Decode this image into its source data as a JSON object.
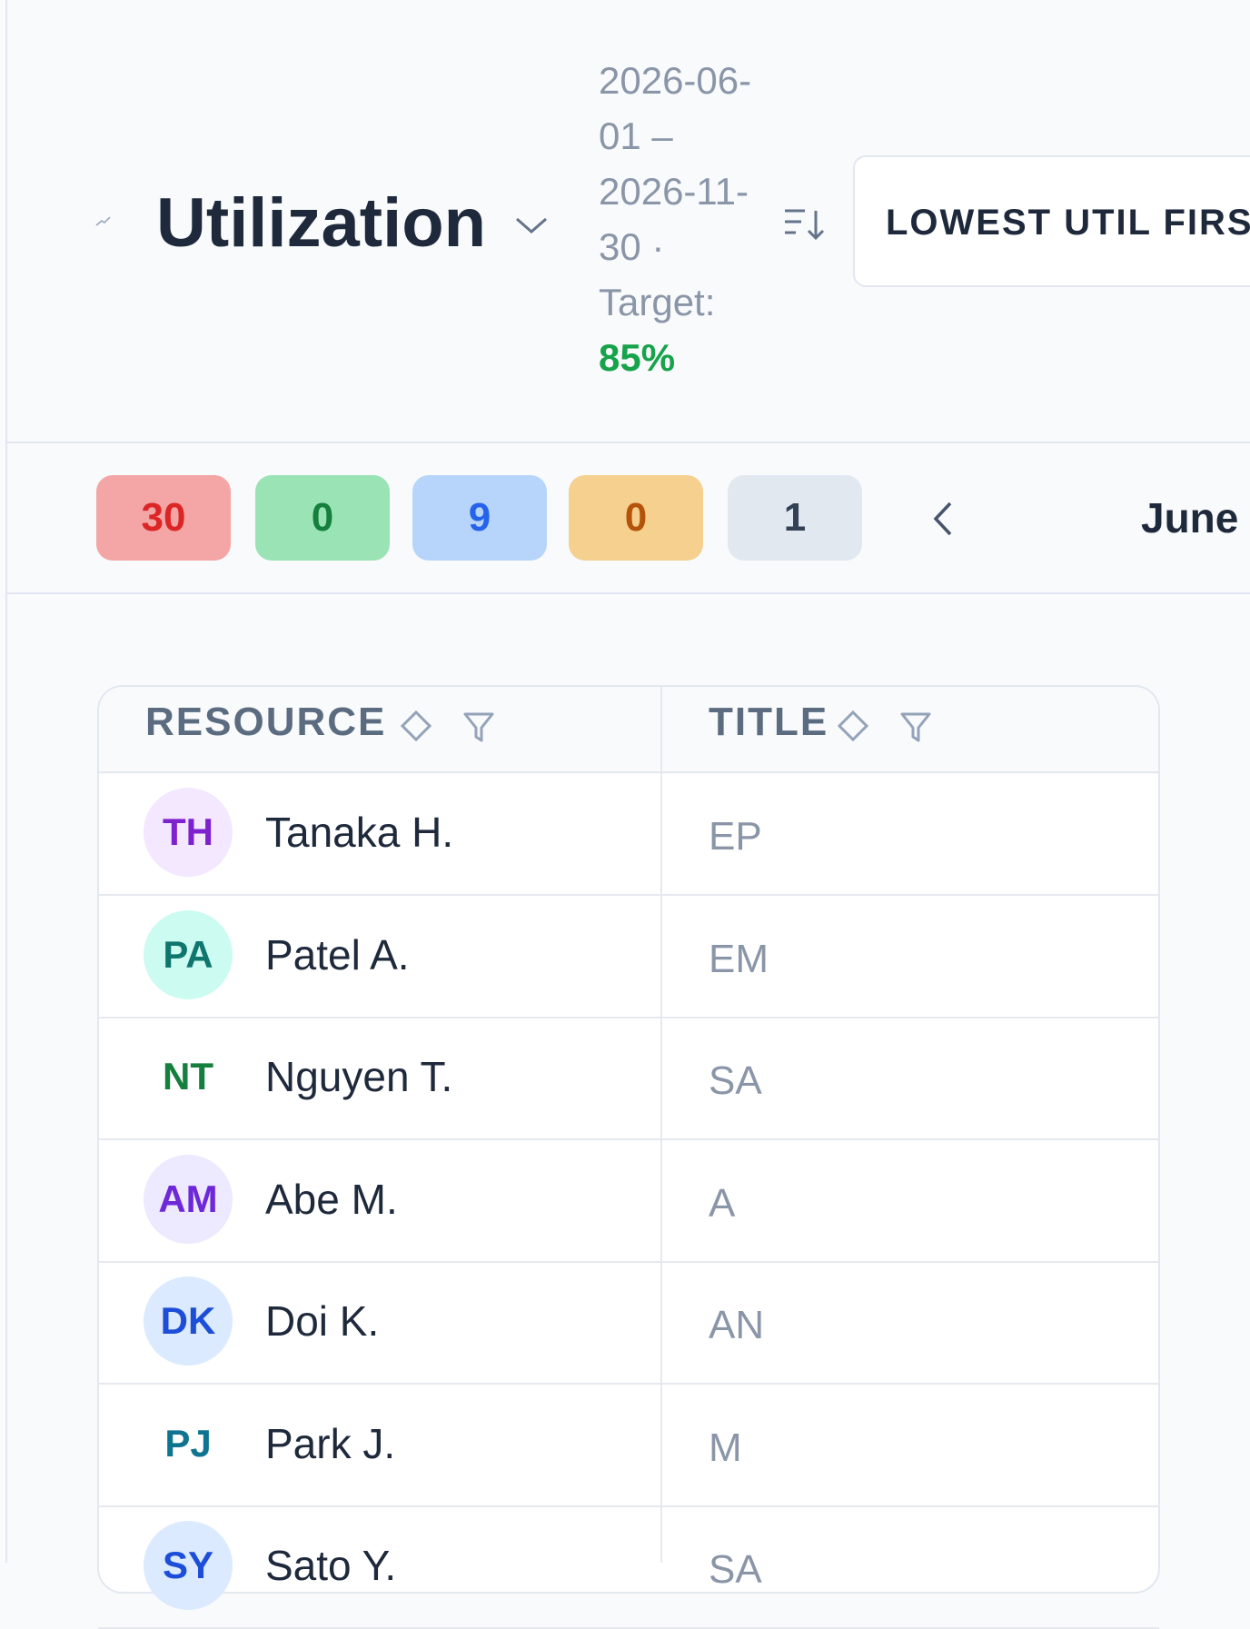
{
  "header": {
    "title": "Utilization",
    "date_range": "2026-06-01 – 2026-11-30 ·",
    "target_label": "Target:",
    "target_value": "85%",
    "sort_button": "LOWEST UTIL FIRST"
  },
  "badges": [
    30,
    0,
    9,
    0,
    1
  ],
  "month": "June",
  "table": {
    "columns": [
      "RESOURCE",
      "TITLE"
    ],
    "rows": [
      {
        "initials": "TH",
        "name": "Tanaka H.",
        "title": "EP"
      },
      {
        "initials": "PA",
        "name": "Patel A.",
        "title": "EM"
      },
      {
        "initials": "NT",
        "name": "Nguyen T.",
        "title": "SA"
      },
      {
        "initials": "AM",
        "name": "Abe M.",
        "title": "A"
      },
      {
        "initials": "DK",
        "name": "Doi K.",
        "title": "AN"
      },
      {
        "initials": "PJ",
        "name": "Park J.",
        "title": "M"
      },
      {
        "initials": "SY",
        "name": "Sato Y.",
        "title": "SA"
      }
    ]
  }
}
